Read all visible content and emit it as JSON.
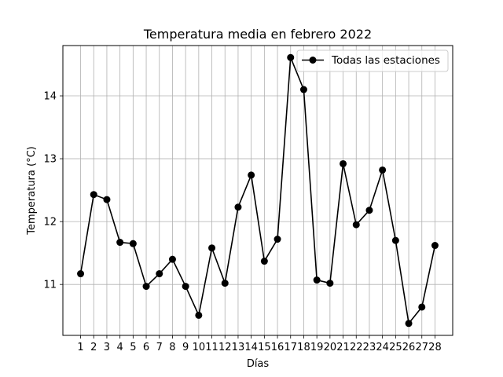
{
  "chart_data": {
    "type": "line",
    "title": "Temperatura media en febrero 2022",
    "xlabel": "Días",
    "ylabel": "Temperatura (°C)",
    "x": [
      1,
      2,
      3,
      4,
      5,
      6,
      7,
      8,
      9,
      10,
      11,
      12,
      13,
      14,
      15,
      16,
      17,
      18,
      19,
      20,
      21,
      22,
      23,
      24,
      25,
      26,
      27,
      28
    ],
    "series": [
      {
        "name": "Todas las estaciones",
        "color": "#000000",
        "marker": "circle",
        "values": [
          11.17,
          12.43,
          12.35,
          11.67,
          11.65,
          10.97,
          11.17,
          11.4,
          10.97,
          10.51,
          11.58,
          11.02,
          12.23,
          12.74,
          11.37,
          11.72,
          14.61,
          14.1,
          11.07,
          11.02,
          12.92,
          11.95,
          12.18,
          12.82,
          11.7,
          10.38,
          10.64,
          11.62
        ]
      }
    ],
    "xlim": [
      -0.35,
      29.35
    ],
    "ylim": [
      10.19,
      14.8
    ],
    "yticks": [
      11,
      12,
      13,
      14
    ],
    "xticks": [
      1,
      2,
      3,
      4,
      5,
      6,
      7,
      8,
      9,
      10,
      11,
      12,
      13,
      14,
      15,
      16,
      17,
      18,
      19,
      20,
      21,
      22,
      23,
      24,
      25,
      26,
      27,
      28
    ],
    "grid": true,
    "legend_position": "top-right"
  }
}
